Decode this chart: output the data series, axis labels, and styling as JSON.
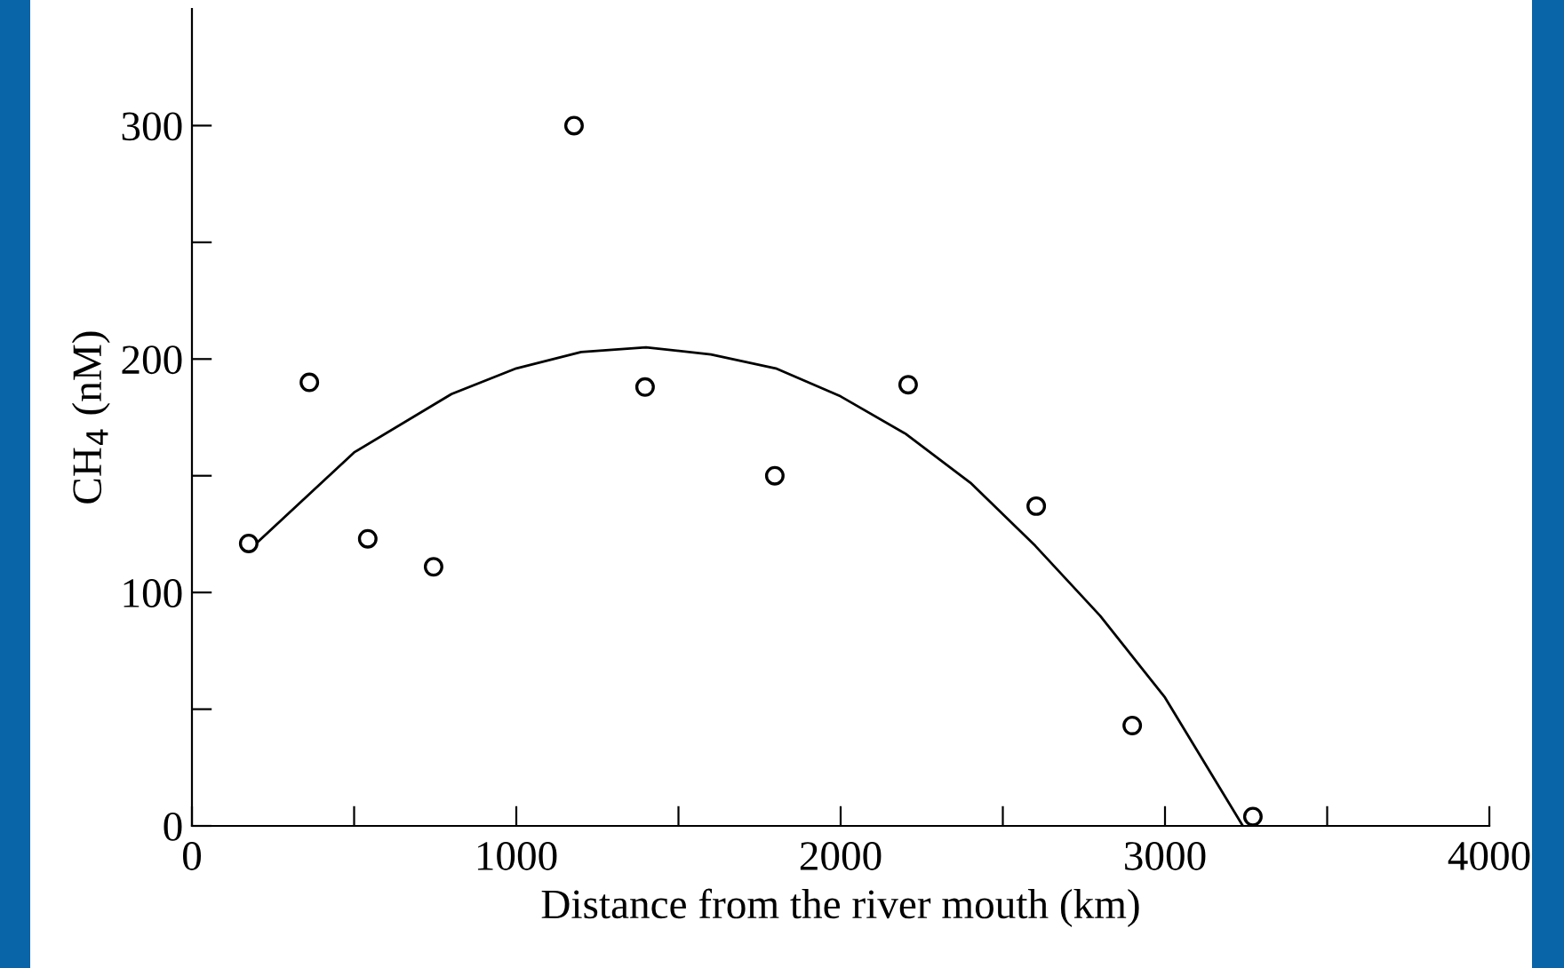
{
  "chart_data": {
    "type": "scatter",
    "xlabel": "Distance from the river mouth (km)",
    "ylabel": "CH$_{4}$ (nM)",
    "xlim": [
      0,
      4000
    ],
    "ylim": [
      0,
      350
    ],
    "xticks": [
      0,
      {
        "value": 500,
        "label": null
      },
      1000,
      {
        "value": 1500,
        "label": null
      },
      2000,
      {
        "value": 2500,
        "label": null
      },
      3000,
      {
        "value": 3500,
        "label": null
      },
      4000
    ],
    "yticks": [
      0,
      {
        "value": 50,
        "label": null
      },
      100,
      {
        "value": 150,
        "label": null
      },
      200,
      {
        "value": 250,
        "label": null
      },
      300
    ],
    "grid": false,
    "legend": false,
    "marker": "circle",
    "series": [
      {
        "color": "#000000",
        "x": [
          175,
          362,
          542,
          745,
          1178,
          1397,
          1797,
          2208,
          2603,
          2899,
          3271
        ],
        "values": [
          121,
          190,
          123,
          111,
          300,
          188,
          150,
          189,
          137,
          43,
          4
        ]
      },
      {
        "type": "line",
        "color": "#000000",
        "line_style": "solid",
        "marker": "none",
        "x": [
          175,
          500,
          800,
          1000,
          1200,
          1400,
          1600,
          1800,
          2000,
          2200,
          2400,
          2600,
          2800,
          3000,
          3240
        ],
        "values": [
          118,
          160,
          185,
          196,
          203,
          205,
          202,
          196,
          184,
          168,
          147,
          120,
          90,
          55,
          0
        ]
      }
    ]
  }
}
